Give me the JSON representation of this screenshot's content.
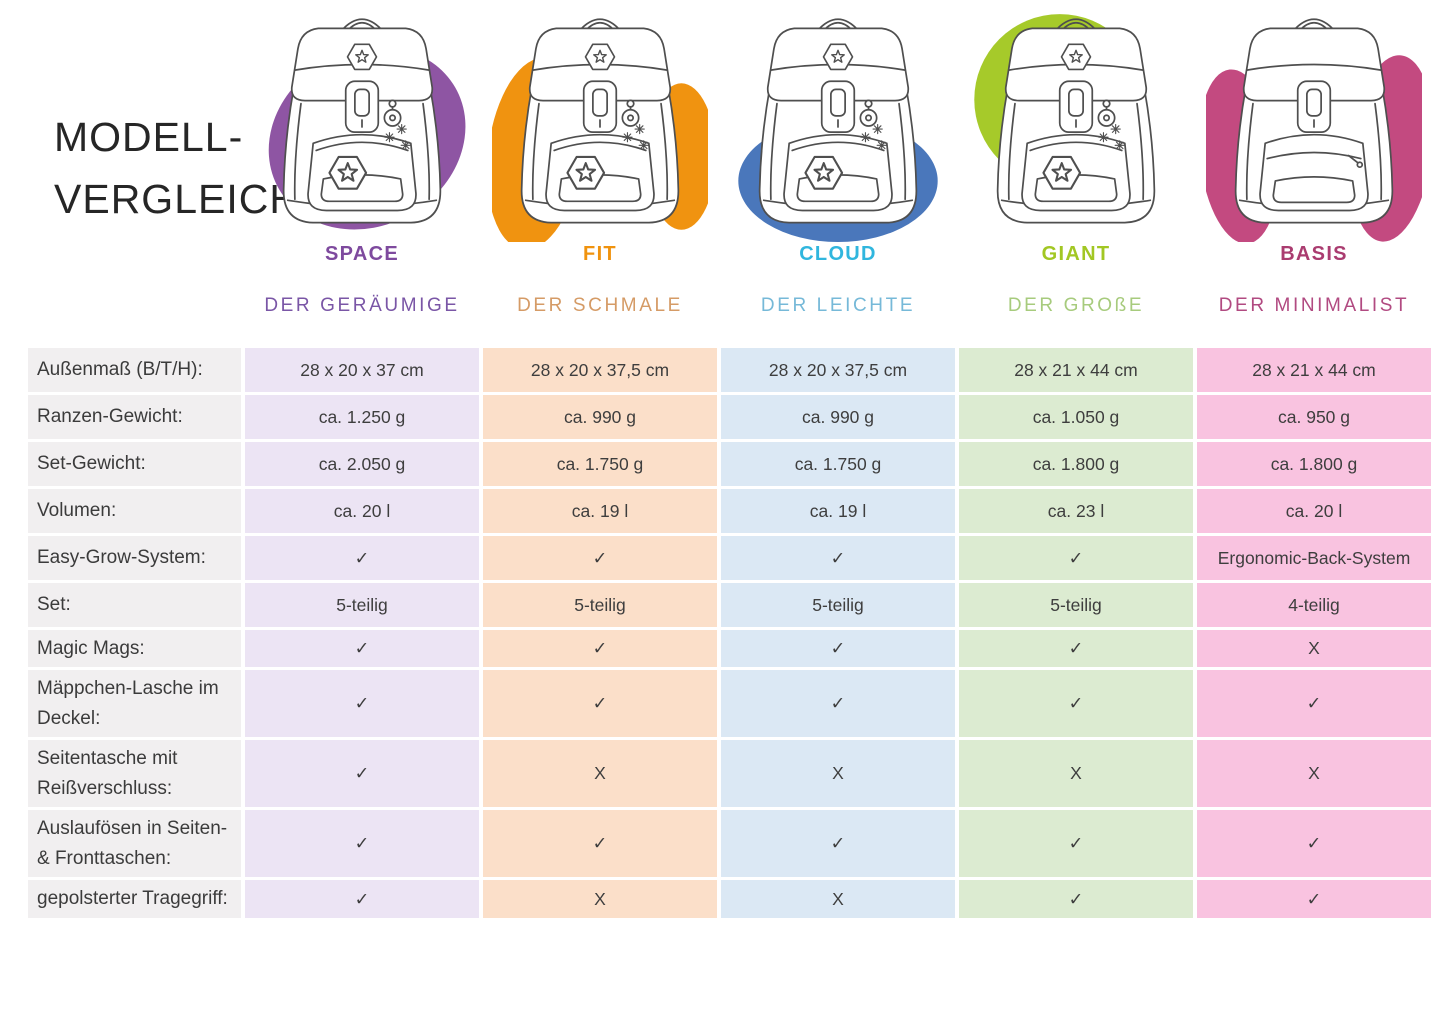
{
  "title": {
    "line1": "MODELL-",
    "line2": "VERGLEICH"
  },
  "models": [
    {
      "name": "SPACE",
      "subtitle": "DER GERÄUMIGE",
      "name_color": "#7e4a9e",
      "subtitle_color": "#7a56a6",
      "blob_color": "#8e55a3",
      "cell_bg": "#ece4f4",
      "illustration": "backpack-sketch-with-purple-brush-blob"
    },
    {
      "name": "FIT",
      "subtitle": "DER SCHMALE",
      "name_color": "#f0930e",
      "subtitle_color": "#d59b66",
      "blob_color": "#f09310",
      "cell_bg": "#fbdfc9",
      "illustration": "backpack-sketch-with-orange-brush-blob"
    },
    {
      "name": "CLOUD",
      "subtitle": "DER LEICHTE",
      "name_color": "#30b6de",
      "subtitle_color": "#76b9d8",
      "blob_color": "#4a77bb",
      "cell_bg": "#dbe8f4",
      "illustration": "backpack-sketch-with-blue-brush-blob"
    },
    {
      "name": "GIANT",
      "subtitle": "DER GROßE",
      "name_color": "#a2c723",
      "subtitle_color": "#a7cb7d",
      "blob_color": "#a6ca2a",
      "cell_bg": "#dcebd1",
      "illustration": "backpack-sketch-with-green-brush-blob"
    },
    {
      "name": "BASIS",
      "subtitle": "DER MINIMALIST",
      "name_color": "#aa3c70",
      "subtitle_color": "#b14a81",
      "blob_color": "#c34a80",
      "cell_bg": "#f9c3e0",
      "illustration": "backpack-sketch-with-magenta-brush-blob"
    }
  ],
  "table": {
    "label_bg": "#f1eff0",
    "rows": [
      {
        "label": "Außenmaß (B/T/H):",
        "cells": [
          "28 x 20 x 37 cm",
          "28 x 20 x 37,5 cm",
          "28 x 20 x 37,5 cm",
          "28 x 21 x 44 cm",
          "28 x 21 x 44 cm"
        ]
      },
      {
        "label": "Ranzen-Gewicht:",
        "cells": [
          "ca. 1.250 g",
          "ca. 990 g",
          "ca. 990 g",
          "ca. 1.050 g",
          "ca. 950 g"
        ]
      },
      {
        "label": "Set-Gewicht:",
        "cells": [
          "ca. 2.050 g",
          "ca. 1.750 g",
          "ca. 1.750 g",
          "ca. 1.800 g",
          "ca. 1.800 g"
        ]
      },
      {
        "label": "Volumen:",
        "cells": [
          "ca. 20 l",
          "ca. 19 l",
          "ca. 19 l",
          "ca. 23 l",
          "ca. 20 l"
        ]
      },
      {
        "label": "Easy-Grow-System:",
        "cells": [
          "✓",
          "✓",
          "✓",
          "✓",
          "Ergonomic-Back-System"
        ]
      },
      {
        "label": "Set:",
        "cells": [
          "5-teilig",
          "5-teilig",
          "5-teilig",
          "5-teilig",
          "4-teilig"
        ]
      },
      {
        "label": "Magic Mags:",
        "cells": [
          "✓",
          "✓",
          "✓",
          "✓",
          "X"
        ]
      },
      {
        "label": "Mäppchen-Lasche im Deckel:",
        "cells": [
          "✓",
          "✓",
          "✓",
          "✓",
          "✓"
        ]
      },
      {
        "label": "Seitentasche mit Reißverschluss:",
        "cells": [
          "✓",
          "X",
          "X",
          "X",
          "X"
        ]
      },
      {
        "label": "Auslaufösen in Seiten- & Fronttaschen:",
        "cells": [
          "✓",
          "✓",
          "✓",
          "✓",
          "✓"
        ]
      },
      {
        "label": "gepolsterter Tragegriff:",
        "cells": [
          "✓",
          "X",
          "X",
          "✓",
          "✓"
        ]
      }
    ]
  }
}
